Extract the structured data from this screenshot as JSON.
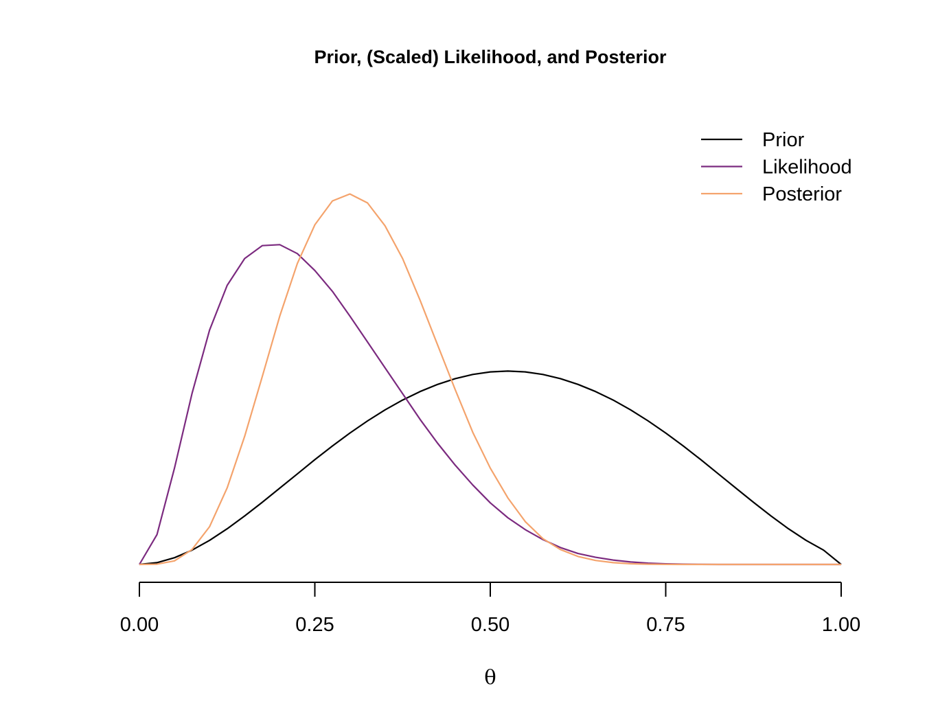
{
  "chart_data": {
    "type": "line",
    "title": "Prior, (Scaled) Likelihood, and Posterior",
    "xlabel": "θ",
    "ylabel": "",
    "xlim": [
      0,
      1
    ],
    "ylim": [
      0,
      4.1
    ],
    "y_axis_shown": false,
    "grid": false,
    "legend_position": "top-right",
    "x_ticks": [
      0,
      0.25,
      0.5,
      0.75,
      1
    ],
    "x_tick_labels": [
      "0.00",
      "0.25",
      "0.50",
      "0.75",
      "1.00"
    ],
    "x": [
      0,
      0.025,
      0.05,
      0.075,
      0.1,
      0.125,
      0.15,
      0.175,
      0.2,
      0.225,
      0.25,
      0.275,
      0.3,
      0.325,
      0.35,
      0.375,
      0.4,
      0.425,
      0.45,
      0.475,
      0.5,
      0.525,
      0.55,
      0.575,
      0.6,
      0.625,
      0.65,
      0.675,
      0.7,
      0.725,
      0.75,
      0.775,
      0.8,
      0.825,
      0.85,
      0.875,
      0.9,
      0.925,
      0.95,
      0.975,
      1
    ],
    "series": [
      {
        "name": "Prior",
        "color": "#000000",
        "values": [
          0,
          0.018,
          0.068,
          0.144,
          0.243,
          0.359,
          0.488,
          0.626,
          0.768,
          0.911,
          1.055,
          1.193,
          1.323,
          1.445,
          1.556,
          1.655,
          1.741,
          1.813,
          1.871,
          1.913,
          1.939,
          1.947,
          1.939,
          1.913,
          1.871,
          1.813,
          1.741,
          1.655,
          1.556,
          1.445,
          1.323,
          1.193,
          1.055,
          0.911,
          0.768,
          0.626,
          0.488,
          0.359,
          0.243,
          0.144,
          0
        ]
      },
      {
        "name": "Likelihood",
        "color": "#7B2A7F",
        "values": [
          0,
          0.3,
          0.97,
          1.72,
          2.36,
          2.81,
          3.08,
          3.21,
          3.22,
          3.13,
          2.96,
          2.75,
          2.5,
          2.24,
          1.98,
          1.72,
          1.46,
          1.22,
          1.0,
          0.8,
          0.62,
          0.47,
          0.35,
          0.25,
          0.17,
          0.11,
          0.072,
          0.044,
          0.025,
          0.013,
          0.006,
          0.003,
          0.001,
          0,
          0,
          0,
          0,
          0,
          0,
          0,
          0
        ]
      },
      {
        "name": "Posterior",
        "color": "#F4A36C",
        "values": [
          0,
          0.003,
          0.036,
          0.15,
          0.38,
          0.77,
          1.29,
          1.89,
          2.5,
          3.03,
          3.42,
          3.66,
          3.73,
          3.64,
          3.41,
          3.08,
          2.66,
          2.21,
          1.76,
          1.33,
          0.97,
          0.67,
          0.43,
          0.26,
          0.15,
          0.08,
          0.04,
          0.018,
          0.007,
          0.003,
          0.001,
          0,
          0,
          0,
          0,
          0,
          0,
          0,
          0,
          0,
          0
        ]
      }
    ]
  }
}
